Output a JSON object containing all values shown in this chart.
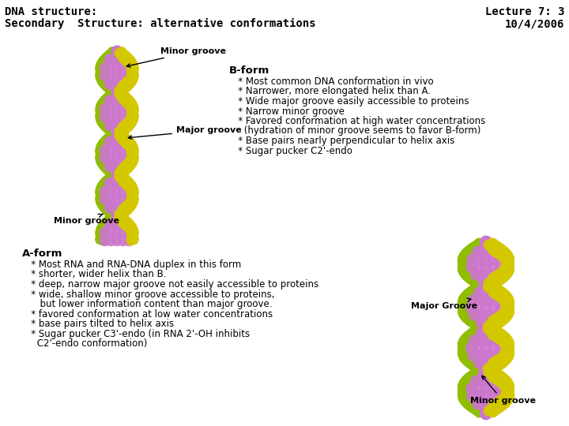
{
  "title_left_line1": "DNA structure:",
  "title_left_line2": "Secondary  Structure: alternative conformations",
  "title_right_line1": "Lecture 7: 3",
  "title_right_line2": "10/4/2006",
  "minor_groove_label_top": "Minor groove",
  "major_groove_label": "Major groove",
  "minor_groove_label_bottom": "Minor groove",
  "bform_title": "B-form",
  "bform_lines": [
    "   * Most common DNA conformation in vivo",
    "   * Narrower, more elongated helix than A.",
    "   * Wide major groove easily accessible to proteins",
    "   * Narrow minor groove",
    "   * Favored conformation at high water concentrations",
    "     (hydration of minor groove seems to favor B-form)",
    "   * Base pairs nearly perpendicular to helix axis",
    "   * Sugar pucker C2'-endo"
  ],
  "aform_title": "A-form",
  "aform_lines": [
    "   * Most RNA and RNA-DNA duplex in this form",
    "   * shorter, wider helix than B.",
    "   * deep, narrow major groove not easily accessible to proteins",
    "   * wide, shallow minor groove accessible to proteins,",
    "      but lower information content than major groove.",
    "   * favored conformation at low water concentrations",
    "   * base pairs tilted to helix axis",
    "   * Sugar pucker C3'-endo (in RNA 2'-OH inhibits",
    "     C2'-endo conformation)"
  ],
  "bg_color": "#ffffff",
  "text_color": "#000000",
  "title_fontsize": 10,
  "body_fontsize": 8.5
}
